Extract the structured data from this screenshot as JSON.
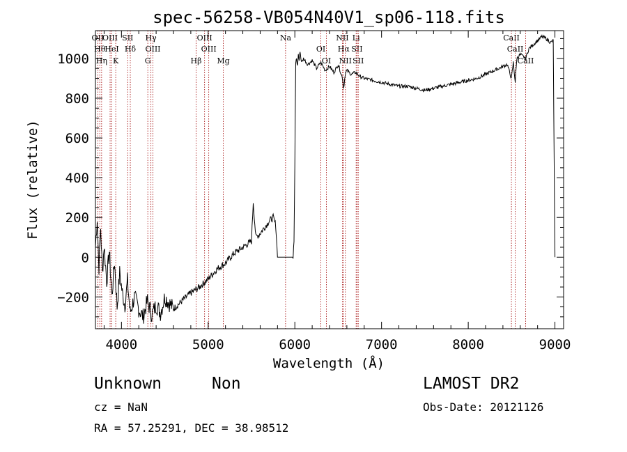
{
  "chart_data": {
    "type": "line",
    "title": "spec-56258-VB054N40V1_sp06-118.fits",
    "xlabel": "Wavelength (Å)",
    "ylabel": "Flux (relative)",
    "xlim": [
      3700,
      9100
    ],
    "ylim": [
      -360,
      1140
    ],
    "x_ticks": [
      4000,
      5000,
      6000,
      7000,
      8000,
      9000
    ],
    "x_tick_labels": [
      "4000",
      "5000",
      "6000",
      "7000",
      "8000",
      "9000"
    ],
    "y_ticks": [
      -200,
      0,
      200,
      400,
      600,
      800,
      1000
    ],
    "y_tick_labels": [
      "−200",
      "0",
      "200",
      "400",
      "600",
      "800",
      "1000"
    ],
    "grid": false,
    "legend": "none",
    "line_color": "#000000",
    "marker_color": "#a00000",
    "series": [
      {
        "x": [
          3700,
          3720,
          3740,
          3760,
          3780,
          3800,
          3830,
          3860,
          3890,
          3920,
          3950,
          3980,
          4010,
          4040,
          4070,
          4100,
          4150,
          4200,
          4250,
          4300,
          4350,
          4400,
          4450,
          4500,
          4600,
          4700,
          4800,
          4900,
          5000,
          5100,
          5200,
          5300,
          5400,
          5500,
          5520,
          5550,
          5600,
          5650,
          5700,
          5750,
          5780,
          5800,
          5820,
          5840,
          5860,
          5900,
          5950,
          5980,
          5990,
          6000,
          6010,
          6020,
          6030,
          6040,
          6050,
          6060,
          6070,
          6080,
          6100,
          6150,
          6200,
          6250,
          6300,
          6350,
          6400,
          6450,
          6500,
          6550,
          6563,
          6580,
          6600,
          6650,
          6700,
          6750,
          6800,
          6900,
          7000,
          7100,
          7200,
          7300,
          7400,
          7500,
          7600,
          7700,
          7800,
          7900,
          8000,
          8100,
          8200,
          8300,
          8400,
          8450,
          8498,
          8520,
          8542,
          8560,
          8600,
          8662,
          8700,
          8750,
          8800,
          8850,
          8900,
          8950,
          8980,
          9000
        ],
        "y": [
          50,
          200,
          -50,
          150,
          -80,
          60,
          -120,
          30,
          -200,
          -20,
          -250,
          -80,
          -180,
          -240,
          -120,
          -280,
          -200,
          -260,
          -300,
          -220,
          -290,
          -240,
          -280,
          -200,
          -260,
          -220,
          -180,
          -150,
          -110,
          -60,
          -30,
          20,
          50,
          80,
          280,
          100,
          120,
          150,
          180,
          200,
          160,
          0,
          0,
          0,
          0,
          0,
          0,
          0,
          80,
          450,
          980,
          1000,
          960,
          1020,
          990,
          1040,
          1000,
          980,
          1000,
          970,
          990,
          950,
          980,
          940,
          960,
          930,
          970,
          900,
          850,
          920,
          940,
          920,
          930,
          910,
          900,
          890,
          880,
          870,
          860,
          860,
          850,
          840,
          850,
          860,
          870,
          880,
          890,
          900,
          920,
          940,
          960,
          970,
          900,
          980,
          880,
          1000,
          1020,
          1000,
          1050,
          1070,
          1090,
          1110,
          1100,
          1080,
          1090,
          0
        ]
      }
    ],
    "marked_lines": [
      {
        "x": 3727,
        "names": [
          "OII"
        ]
      },
      {
        "x": 3750,
        "names": [
          "Hθ"
        ]
      },
      {
        "x": 3771,
        "names": [
          "Hη"
        ]
      },
      {
        "x": 3869,
        "names": [
          "OIII"
        ]
      },
      {
        "x": 3889,
        "names": [
          "HeI"
        ]
      },
      {
        "x": 3934,
        "names": [
          "K"
        ]
      },
      {
        "x": 4072,
        "names": [
          "SII"
        ]
      },
      {
        "x": 4102,
        "names": [
          "Hδ"
        ]
      },
      {
        "x": 4304,
        "names": [
          "G"
        ]
      },
      {
        "x": 4340,
        "names": [
          "Hγ"
        ]
      },
      {
        "x": 4363,
        "names": [
          "OIII"
        ]
      },
      {
        "x": 4861,
        "names": [
          "Hβ"
        ]
      },
      {
        "x": 4959,
        "names": [
          "OIII"
        ]
      },
      {
        "x": 5007,
        "names": [
          "OIII"
        ]
      },
      {
        "x": 5175,
        "names": [
          "Mg"
        ]
      },
      {
        "x": 5893,
        "names": [
          "Na"
        ]
      },
      {
        "x": 6300,
        "names": [
          "OI"
        ]
      },
      {
        "x": 6364,
        "names": [
          "OI"
        ]
      },
      {
        "x": 6548,
        "names": [
          "NII"
        ]
      },
      {
        "x": 6563,
        "names": [
          "Hα"
        ]
      },
      {
        "x": 6583,
        "names": [
          "NII"
        ]
      },
      {
        "x": 6707,
        "names": [
          "Li"
        ]
      },
      {
        "x": 6717,
        "names": [
          "SII"
        ]
      },
      {
        "x": 6731,
        "names": [
          "SII"
        ]
      },
      {
        "x": 8498,
        "names": [
          "CaII"
        ]
      },
      {
        "x": 8542,
        "names": [
          "CaII"
        ]
      },
      {
        "x": 8662,
        "names": [
          "CaII"
        ]
      }
    ]
  },
  "info": {
    "object_class": "Unknown",
    "object_subclass": "Non",
    "survey": "LAMOST DR2",
    "cz": "cz = NaN",
    "obs_date": "Obs-Date: 20121126",
    "radec": "RA =  57.25291, DEC =  38.98512"
  }
}
